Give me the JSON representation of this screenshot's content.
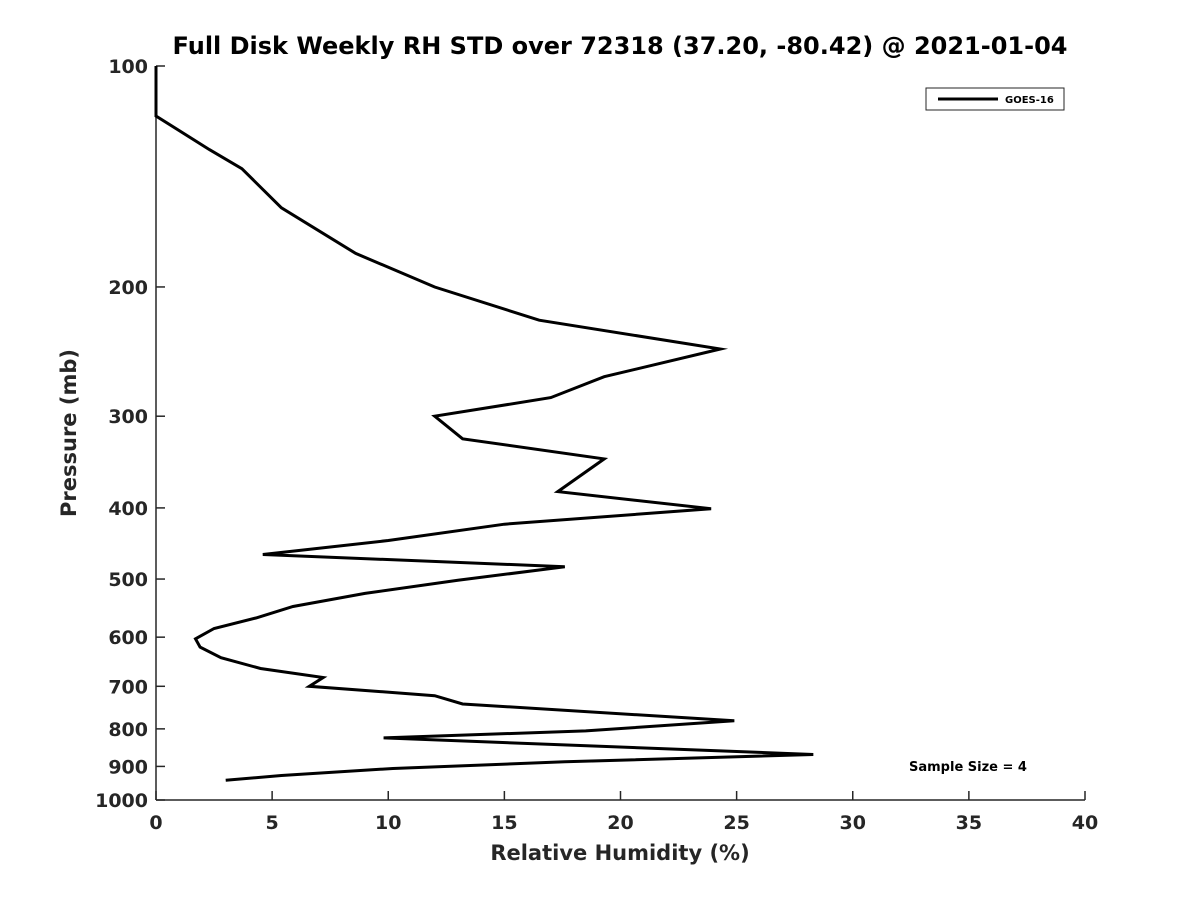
{
  "chart_data": {
    "type": "line",
    "title": "Full Disk Weekly RH STD over 72318 (37.20, -80.42) @ 2021-01-04",
    "xlabel": "Relative Humidity (%)",
    "ylabel": "Pressure (mb)",
    "xlim": [
      0,
      40
    ],
    "ylim": [
      100,
      1000
    ],
    "y_scale": "log",
    "y_reversed": true,
    "grid": false,
    "legend_position": "top-right",
    "x_ticks": [
      0,
      5,
      10,
      15,
      20,
      25,
      30,
      35,
      40
    ],
    "y_ticks": [
      100,
      200,
      300,
      400,
      500,
      600,
      700,
      800,
      900,
      1000
    ],
    "annotation": "Sample Size = 4",
    "series": [
      {
        "name": "GOES-16",
        "color": "#000000",
        "points": [
          [
            0.0,
            100
          ],
          [
            0.0,
            117
          ],
          [
            2.3,
            130
          ],
          [
            3.7,
            138
          ],
          [
            5.4,
            156
          ],
          [
            8.6,
            180
          ],
          [
            12.0,
            200
          ],
          [
            16.5,
            222
          ],
          [
            24.3,
            243
          ],
          [
            19.3,
            265
          ],
          [
            17.0,
            283
          ],
          [
            12.0,
            300
          ],
          [
            13.2,
            322
          ],
          [
            19.3,
            343
          ],
          [
            17.3,
            380
          ],
          [
            23.9,
            401
          ],
          [
            15.0,
            421
          ],
          [
            10.0,
            443
          ],
          [
            4.6,
            463
          ],
          [
            17.6,
            481
          ],
          [
            13.0,
            502
          ],
          [
            9.0,
            523
          ],
          [
            5.9,
            545
          ],
          [
            4.3,
            565
          ],
          [
            2.5,
            584
          ],
          [
            1.7,
            603
          ],
          [
            1.9,
            619
          ],
          [
            2.8,
            640
          ],
          [
            4.5,
            662
          ],
          [
            7.2,
            681
          ],
          [
            6.6,
            700
          ],
          [
            12.0,
            721
          ],
          [
            13.2,
            740
          ],
          [
            24.9,
            780
          ],
          [
            18.5,
            805
          ],
          [
            9.8,
            823
          ],
          [
            28.3,
            867
          ],
          [
            17.6,
            887
          ],
          [
            10.2,
            906
          ],
          [
            5.4,
            926
          ],
          [
            3.0,
            940
          ]
        ]
      }
    ]
  }
}
